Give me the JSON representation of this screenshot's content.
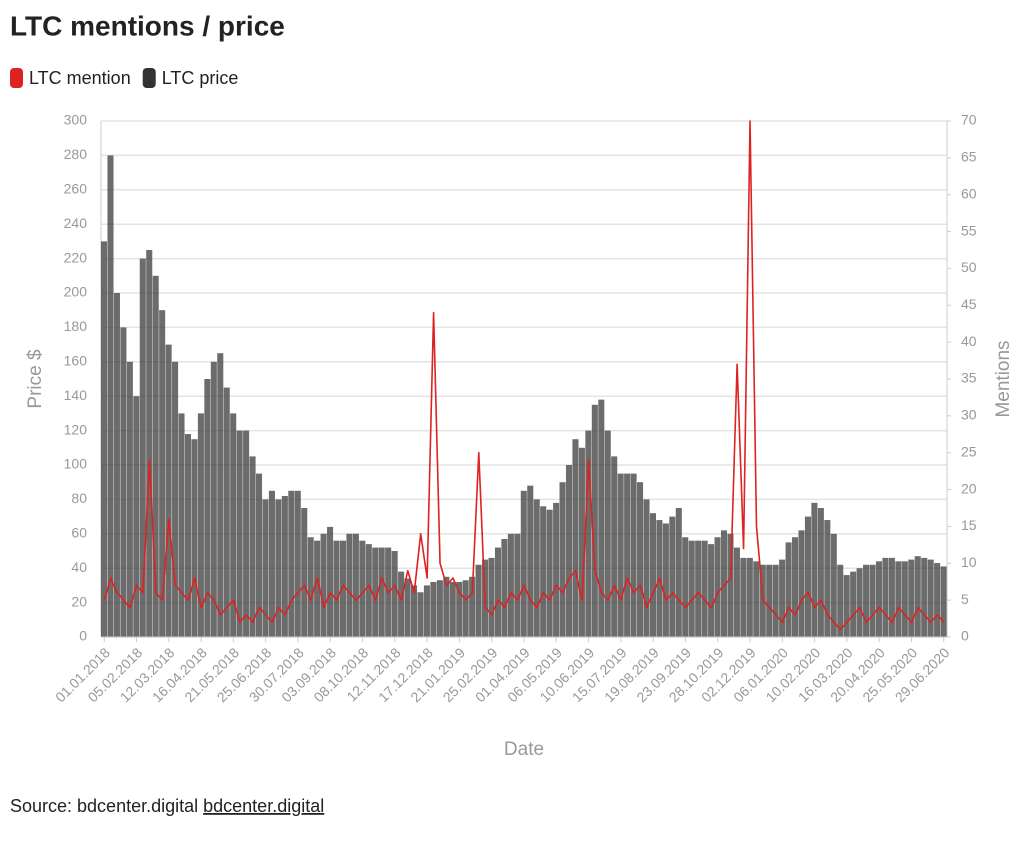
{
  "chart_data": {
    "type": "bar",
    "title": "LTC mentions / price",
    "x_label": "Date",
    "y_label": "Price $",
    "y2_label": "Mentions",
    "source_label": "Source: bdcenter.digital",
    "source_link": "bdcenter.digital",
    "categories": [
      "01.01.2018",
      null,
      null,
      null,
      null,
      "05.02.2018",
      null,
      null,
      null,
      null,
      "12.03.2018",
      null,
      null,
      null,
      null,
      "16.04.2018",
      null,
      null,
      null,
      null,
      "21.05.2018",
      null,
      null,
      null,
      null,
      "25.06.2018",
      null,
      null,
      null,
      null,
      "30.07.2018",
      null,
      null,
      null,
      null,
      "03.09.2018",
      null,
      null,
      null,
      null,
      "08.10.2018",
      null,
      null,
      null,
      null,
      "12.11.2018",
      null,
      null,
      null,
      null,
      "17.12.2018",
      null,
      null,
      null,
      null,
      "21.01.2019",
      null,
      null,
      null,
      null,
      "25.02.2019",
      null,
      null,
      null,
      null,
      "01.04.2019",
      null,
      null,
      null,
      null,
      "06.05.2019",
      null,
      null,
      null,
      null,
      "10.06.2019",
      null,
      null,
      null,
      null,
      "15.07.2019",
      null,
      null,
      null,
      null,
      "19.08.2019",
      null,
      null,
      null,
      null,
      "23.09.2019",
      null,
      null,
      null,
      null,
      "28.10.2019",
      null,
      null,
      null,
      null,
      "02.12.2019",
      null,
      null,
      null,
      null,
      "06.01.2020",
      null,
      null,
      null,
      null,
      "10.02.2020",
      null,
      null,
      null,
      null,
      "16.03.2020",
      null,
      null,
      null,
      null,
      "20.04.2020",
      null,
      null,
      null,
      null,
      "25.05.2020",
      null,
      null,
      null,
      null,
      "29.06.2020"
    ],
    "series": [
      {
        "name": "LTC mention",
        "color": "#dd2222",
        "type": "line",
        "axis": "y2",
        "values": [
          5,
          8,
          6,
          5,
          4,
          7,
          6,
          24,
          6,
          5,
          16,
          7,
          6,
          5,
          8,
          4,
          6,
          5,
          3,
          4,
          5,
          2,
          3,
          2,
          4,
          3,
          2,
          4,
          3,
          5,
          6,
          7,
          5,
          8,
          4,
          6,
          5,
          7,
          6,
          5,
          6,
          7,
          5,
          8,
          6,
          7,
          5,
          9,
          6,
          14,
          8,
          44,
          10,
          7,
          8,
          6,
          5,
          6,
          25,
          4,
          3,
          5,
          4,
          6,
          5,
          7,
          5,
          4,
          6,
          5,
          7,
          6,
          8,
          9,
          5,
          24,
          9,
          6,
          5,
          7,
          5,
          8,
          6,
          7,
          4,
          6,
          8,
          5,
          6,
          5,
          4,
          5,
          6,
          5,
          4,
          6,
          7,
          8,
          37,
          12,
          70,
          15,
          5,
          4,
          3,
          2,
          4,
          3,
          5,
          6,
          4,
          5,
          3,
          2,
          1,
          2,
          3,
          4,
          2,
          3,
          4,
          3,
          2,
          4,
          3,
          2,
          4,
          3,
          2,
          3,
          2
        ]
      },
      {
        "name": "LTC price",
        "color": "#333333",
        "type": "bar",
        "values": [
          230,
          280,
          200,
          180,
          160,
          140,
          220,
          225,
          210,
          190,
          170,
          160,
          130,
          118,
          115,
          130,
          150,
          160,
          165,
          145,
          130,
          120,
          120,
          105,
          95,
          80,
          85,
          80,
          82,
          85,
          85,
          75,
          58,
          56,
          60,
          64,
          56,
          56,
          60,
          60,
          56,
          54,
          52,
          52,
          52,
          50,
          38,
          34,
          30,
          26,
          30,
          32,
          33,
          35,
          32,
          32,
          33,
          35,
          42,
          45,
          46,
          52,
          57,
          60,
          60,
          85,
          88,
          80,
          76,
          74,
          78,
          90,
          100,
          115,
          110,
          120,
          135,
          138,
          120,
          105,
          95,
          95,
          95,
          90,
          80,
          72,
          68,
          66,
          70,
          75,
          58,
          56,
          56,
          56,
          54,
          58,
          62,
          60,
          52,
          46,
          46,
          44,
          42,
          42,
          42,
          45,
          55,
          58,
          62,
          70,
          78,
          75,
          68,
          60,
          42,
          36,
          38,
          40,
          42,
          42,
          44,
          46,
          46,
          44,
          44,
          45,
          47,
          46,
          45,
          43,
          41
        ]
      }
    ],
    "ylim": [
      0,
      300
    ],
    "yticks": [
      0,
      20,
      40,
      60,
      80,
      100,
      120,
      140,
      160,
      180,
      200,
      220,
      240,
      260,
      280,
      300
    ],
    "y2lim": [
      0,
      70
    ],
    "y2ticks": [
      0,
      5,
      10,
      15,
      20,
      25,
      30,
      35,
      40,
      45,
      50,
      55,
      60,
      65,
      70
    ],
    "grid": true
  }
}
